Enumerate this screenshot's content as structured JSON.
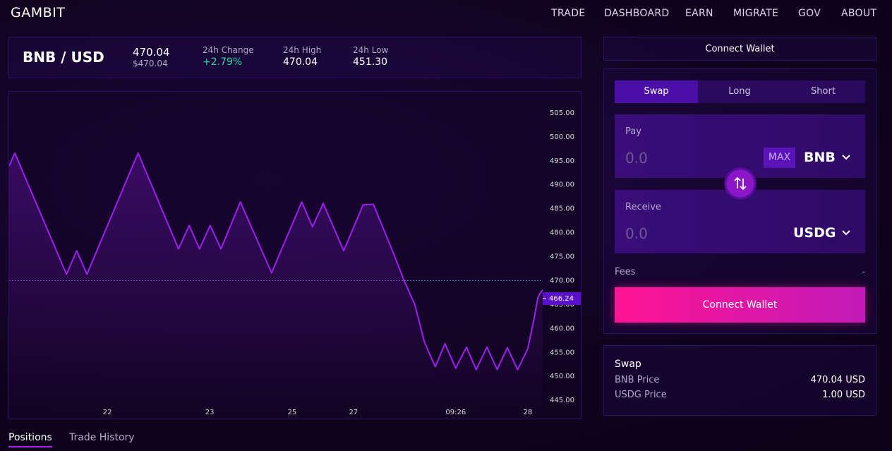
{
  "nav": {
    "brand": "GAMBIT",
    "links": [
      "TRADE",
      "DASHBOARD",
      "EARN",
      "MIGRATE",
      "GOV",
      "ABOUT"
    ]
  },
  "ticker": {
    "pair": "BNB / USD",
    "price": "470.04",
    "price_usd": "$470.04",
    "change_label": "24h Change",
    "change": "+2.79%",
    "high_label": "24h High",
    "high": "470.04",
    "low_label": "24h Low",
    "low": "451.30"
  },
  "chart_data": {
    "type": "line",
    "color": "#9d1ff0",
    "x": [
      0,
      1.1,
      11.2,
      13.2,
      15.2,
      25.2,
      33.1,
      35.2,
      37.2,
      39.3,
      41.4,
      45.2,
      51.3,
      57.2,
      59.3,
      61.4,
      65.4,
      69.2,
      71.2,
      75.2,
      77.2,
      79.3,
      81.2,
      83.3,
      85.2,
      87.3,
      89.4,
      91.3,
      93.4,
      95.4,
      97.4,
      99.4,
      101.4,
      102.5,
      103.4,
      104.3
    ],
    "values": [
      493.9,
      496.6,
      471.3,
      476.2,
      471.3,
      496.6,
      476.6,
      481.5,
      476.6,
      481.5,
      476.6,
      486.4,
      471.6,
      486.4,
      481.2,
      486.1,
      476.2,
      485.8,
      485.9,
      475.5,
      470.0,
      465.0,
      457.1,
      452.0,
      456.8,
      451.7,
      456.1,
      451.4,
      456.1,
      451.4,
      456.0,
      451.4,
      455.8,
      461.4,
      466.6,
      468.1
    ],
    "xlim": [
      0,
      104.3
    ],
    "xticks": [
      {
        "value": 19.2,
        "label": "22"
      },
      {
        "value": 39.2,
        "label": "23"
      },
      {
        "value": 55.3,
        "label": "25"
      },
      {
        "value": 67.3,
        "label": "27"
      },
      {
        "value": 87.3,
        "label": "09:26"
      },
      {
        "value": 101.4,
        "label": "28"
      }
    ],
    "ylim": [
      440.9,
      509.4
    ],
    "yticks": [
      {
        "value": 445,
        "label": "445.00"
      },
      {
        "value": 450,
        "label": "450.00"
      },
      {
        "value": 455,
        "label": "455.00"
      },
      {
        "value": 460,
        "label": "460.00"
      },
      {
        "value": 465,
        "label": "465.00"
      },
      {
        "value": 470,
        "label": "470.00"
      },
      {
        "value": 475,
        "label": "475.00"
      },
      {
        "value": 480,
        "label": "480.00"
      },
      {
        "value": 485,
        "label": "485.00"
      },
      {
        "value": 490,
        "label": "490.00"
      },
      {
        "value": 495,
        "label": "495.00"
      },
      {
        "value": 500,
        "label": "500.00"
      },
      {
        "value": 505,
        "label": "505.00"
      }
    ],
    "reference_value": 470,
    "current_value": 466.24,
    "grid": false
  },
  "trade": {
    "connect_wallet": "Connect Wallet",
    "tabs": [
      "Swap",
      "Long",
      "Short"
    ],
    "pay_label": "Pay",
    "pay_placeholder": "0.0",
    "max": "MAX",
    "pay_token": "BNB",
    "receive_label": "Receive",
    "receive_placeholder": "0.0",
    "receive_token": "USDG",
    "fees_label": "Fees",
    "fees_value": "-",
    "button": "Connect Wallet"
  },
  "info": {
    "title": "Swap",
    "rows": [
      [
        "BNB Price",
        "470.04 USD"
      ],
      [
        "USDG Price",
        "1.00 USD"
      ]
    ]
  },
  "bottom_tabs": [
    "Positions",
    "Trade History"
  ]
}
